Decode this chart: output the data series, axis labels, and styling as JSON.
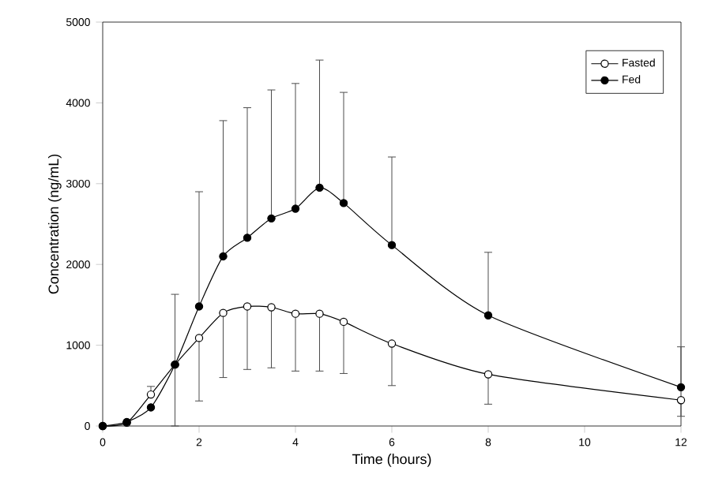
{
  "chart_data": {
    "type": "line",
    "xlabel": "Time (hours)",
    "ylabel": "Concentration (ng/mL)",
    "xlim": [
      0,
      12
    ],
    "xticks": [
      0,
      2,
      4,
      6,
      8,
      10,
      12
    ],
    "ylim": [
      0,
      5000
    ],
    "yticks": [
      0,
      1000,
      2000,
      3000,
      4000,
      5000
    ],
    "legend": "top right",
    "marker": "circle",
    "line_style": "solid",
    "grid": false,
    "x": [
      0,
      0.5,
      1,
      1.5,
      2,
      2.5,
      3,
      3.5,
      4,
      4.5,
      5,
      6,
      8,
      12
    ],
    "series": [
      {
        "name": "Fasted",
        "color": "#ffffff",
        "values": [
          0,
          40,
          390,
          760,
          1090,
          1400,
          1480,
          1470,
          1390,
          1390,
          1290,
          1020,
          640,
          320
        ],
        "errors": [
          null,
          null,
          [
            390,
            490
          ],
          [
            0,
            760
          ],
          [
            310,
            1090
          ],
          [
            600,
            1400
          ],
          [
            700,
            1480
          ],
          [
            720,
            1470
          ],
          [
            680,
            1390
          ],
          [
            680,
            1390
          ],
          [
            650,
            1290
          ],
          [
            500,
            1020
          ],
          [
            270,
            640
          ],
          [
            120,
            320
          ]
        ]
      },
      {
        "name": "Fed",
        "color": "#000000",
        "values": [
          0,
          50,
          230,
          760,
          1480,
          2100,
          2330,
          2570,
          2690,
          2950,
          2760,
          2240,
          1370,
          480
        ],
        "errors": [
          null,
          null,
          null,
          [
            760,
            1630
          ],
          [
            1480,
            2900
          ],
          [
            2100,
            3780
          ],
          [
            2330,
            3940
          ],
          [
            2570,
            4160
          ],
          [
            2690,
            4240
          ],
          [
            2950,
            4530
          ],
          [
            2760,
            4130
          ],
          [
            2240,
            3330
          ],
          [
            1370,
            2150
          ],
          [
            480,
            980
          ]
        ]
      }
    ]
  }
}
